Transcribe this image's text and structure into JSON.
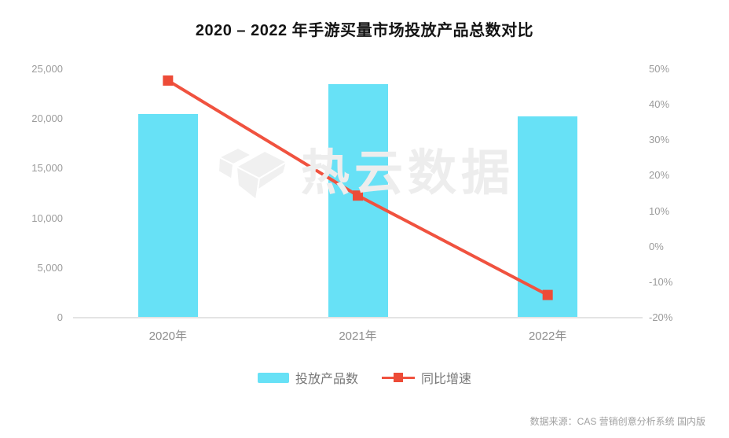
{
  "title": "2020 – 2022 年手游买量市场投放产品总数对比",
  "watermark": "热云数据",
  "source_note": "数据来源：CAS 营销创意分析系统 国内版",
  "colors": {
    "bar": "#67e1f6",
    "line": "#f0523f",
    "marker": "#ed4b37",
    "title_text": "#141414",
    "axis_text": "#9b9b9b",
    "x_label_text": "#8c8c8c",
    "legend_text": "#777777",
    "axis_line": "#e4e4e4",
    "watermark_gray": "#ededed"
  },
  "legend": {
    "items": [
      {
        "label": "投放产品数",
        "type": "bar"
      },
      {
        "label": "同比增速",
        "type": "line"
      }
    ]
  },
  "chart_data": {
    "type": "bar",
    "title": "2020 – 2022 年手游买量市场投放产品总数对比",
    "categories": [
      "2020年",
      "2021年",
      "2022年"
    ],
    "series": [
      {
        "name": "投放产品数",
        "type": "bar",
        "axis": "left",
        "values": [
          20500,
          23500,
          20250
        ]
      },
      {
        "name": "同比增速",
        "type": "line",
        "axis": "right",
        "unit": "%",
        "values": [
          46.8,
          14.4,
          -13.6
        ]
      }
    ],
    "left_axis": {
      "min": 0,
      "max": 25000,
      "ticks": [
        "25,000",
        "20,000",
        "15,000",
        "10,000",
        "5,000",
        "0"
      ]
    },
    "right_axis": {
      "min": -20,
      "max": 50,
      "ticks": [
        "50%",
        "40%",
        "30%",
        "20%",
        "10%",
        "0%",
        "-10%",
        "-20%"
      ]
    },
    "grid": false,
    "legend_position": "bottom"
  }
}
